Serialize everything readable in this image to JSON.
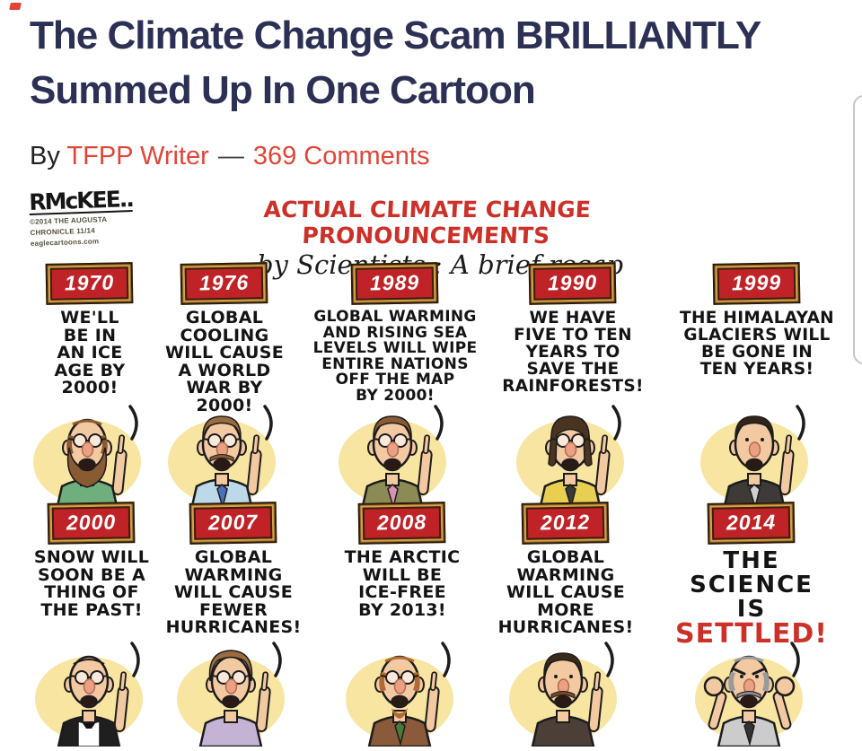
{
  "article": {
    "title": "The Climate Change Scam BRILLIANTLY Summed Up In One Cartoon",
    "byline": {
      "prefix": "By ",
      "author": "TFPP Writer",
      "separator": "—",
      "comments": "369 Comments"
    }
  },
  "cartoon": {
    "signature": {
      "artist": "RMcKEE..",
      "credit_lines": [
        "©2014 THE AUGUSTA",
        "CHRONICLE 11/14",
        "eaglecartoons.com"
      ]
    },
    "title": "ACTUAL CLIMATE CHANGE PRONOUNCEMENTS",
    "subtitle": "by Scientists : A brief recap",
    "colors": {
      "title_red": "#cc3129",
      "badge_red": "#bf2328",
      "badge_frame": "#d9a04b",
      "headline_navy": "#2c3054",
      "link_red": "#e04538",
      "halo_yellow": "#f8e5a1"
    },
    "panels": [
      {
        "year": "1970",
        "lines": [
          "WE'LL",
          "BE IN",
          "AN ICE",
          "AGE BY",
          "2000!"
        ],
        "figure": {
          "icon": "hippie-scientist-icon",
          "hair": "side",
          "hairColor": "#8a5a33",
          "beard": true,
          "facialColor": "#8a5a33",
          "glasses": true,
          "shirt": "#6fae7d"
        }
      },
      {
        "year": "1976",
        "lines": [
          "GLOBAL",
          "COOLING",
          "WILL CAUSE",
          "A WORLD",
          "WAR BY",
          "2000!"
        ],
        "figure": {
          "icon": "scientist-tie-icon",
          "hair": "full",
          "hairColor": "#9a6b3f",
          "mustache": true,
          "facialColor": "#8a5a33",
          "glasses": true,
          "shirt": "#bcd9ea",
          "tie": "#4a72b8"
        }
      },
      {
        "year": "1989",
        "lines": [
          "GLOBAL WARMING",
          "AND RISING SEA",
          "LEVELS WILL WIPE",
          "ENTIRE NATIONS",
          "OFF THE MAP",
          "BY 2000!"
        ],
        "figure": {
          "icon": "scientist-plaid-icon",
          "hair": "full",
          "hairColor": "#8a5a33",
          "glasses": true,
          "shirt": "#8c8a55",
          "tie": "#d892b4"
        }
      },
      {
        "year": "1990",
        "lines": [
          "WE HAVE",
          "FIVE TO TEN",
          "YEARS TO",
          "SAVE THE",
          "RAINFORESTS!"
        ],
        "figure": {
          "icon": "scientist-woman-icon",
          "hair": "long",
          "hairColor": "#4a3320",
          "glasses": true,
          "shirt": "#e8cf52",
          "tie": "#3a3a3a"
        }
      },
      {
        "year": "1999",
        "lines": [
          "THE HIMALAYAN",
          "GLACIERS WILL",
          "BE GONE IN",
          "TEN YEARS!"
        ],
        "figure": {
          "icon": "scientist-jacket-icon",
          "hair": "full",
          "hairColor": "#2f2519",
          "shirt": "#3d3a38",
          "tie": "#cfcfcf"
        }
      },
      {
        "year": "2000",
        "lines": [
          "SNOW WILL",
          "SOON BE A",
          "THING OF",
          "THE PAST!"
        ],
        "figure": {
          "icon": "scientist-tuxedo-icon",
          "hair": "bald",
          "hairColor": "#555555",
          "glasses": true,
          "shirt": "#1f1f1f",
          "tux": true
        }
      },
      {
        "year": "2007",
        "lines": [
          "GLOBAL",
          "WARMING",
          "WILL CAUSE",
          "FEWER",
          "HURRICANES!"
        ],
        "figure": {
          "icon": "scientist-mop-hair-icon",
          "hair": "mop",
          "hairColor": "#9a6b3f",
          "glasses": true,
          "shirt": "#c5b3d6"
        }
      },
      {
        "year": "2008",
        "lines": [
          "THE ARCTIC",
          "WILL BE",
          "ICE-FREE",
          "BY 2013!"
        ],
        "figure": {
          "icon": "scientist-goatee-icon",
          "hair": "side",
          "hairColor": "#b06a35",
          "goatee": true,
          "facialColor": "#b06a35",
          "glasses": true,
          "shirt": "#8a5a3a",
          "tie": "#4a7a3a"
        }
      },
      {
        "year": "2012",
        "lines": [
          "GLOBAL",
          "WARMING",
          "WILL CAUSE",
          "MORE",
          "HURRICANES!"
        ],
        "figure": {
          "icon": "scientist-mustache-icon",
          "hair": "full",
          "hairColor": "#3a2a1a",
          "mustache": true,
          "facialColor": "#7a4a22",
          "shirt": "#4b3f38"
        }
      },
      {
        "year": "2014",
        "lines": [
          {
            "t": "THE",
            "cls": "big"
          },
          {
            "t": "SCIENCE",
            "cls": "big"
          },
          {
            "t": "IS",
            "cls": "big"
          },
          {
            "t": "SETTLED!",
            "cls": "huge red"
          }
        ],
        "figure": {
          "icon": "angry-scientist-fists-icon",
          "hair": "side",
          "hairColor": "#9a9a9a",
          "mustache": true,
          "facialColor": "#8a8a8a",
          "angry": true,
          "shirt": "#cccccc",
          "tie": "#333333",
          "fists": true
        }
      }
    ]
  }
}
